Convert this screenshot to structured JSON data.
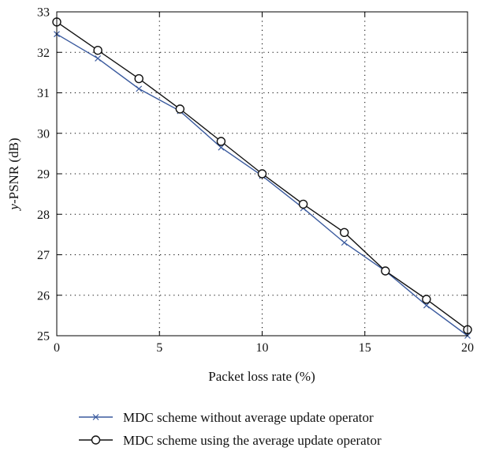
{
  "chart_data": {
    "type": "line",
    "title": "",
    "xlabel": "Packet loss rate (%)",
    "ylabel_prefix": "y",
    "ylabel_rest": "-PSNR (dB)",
    "xlim": [
      0,
      20
    ],
    "ylim": [
      25,
      33
    ],
    "xticks": [
      0,
      5,
      10,
      15,
      20
    ],
    "yticks": [
      25,
      26,
      27,
      28,
      29,
      30,
      31,
      32,
      33
    ],
    "grid": true,
    "grid_style": "dotted",
    "legend_position": "bottom",
    "x": [
      0,
      2,
      4,
      6,
      8,
      10,
      12,
      14,
      16,
      18,
      20
    ],
    "series": [
      {
        "name": "MDC scheme without average update operator",
        "marker": "x",
        "color": "#3a5a9e",
        "values": [
          32.45,
          31.85,
          31.1,
          30.55,
          29.65,
          28.95,
          28.15,
          27.3,
          26.6,
          25.75,
          25.0
        ]
      },
      {
        "name": "MDC scheme using the average update operator",
        "marker": "circle",
        "color": "#111111",
        "values": [
          32.75,
          32.05,
          31.35,
          30.6,
          29.8,
          29.0,
          28.25,
          27.55,
          26.6,
          25.9,
          25.15
        ]
      }
    ]
  }
}
